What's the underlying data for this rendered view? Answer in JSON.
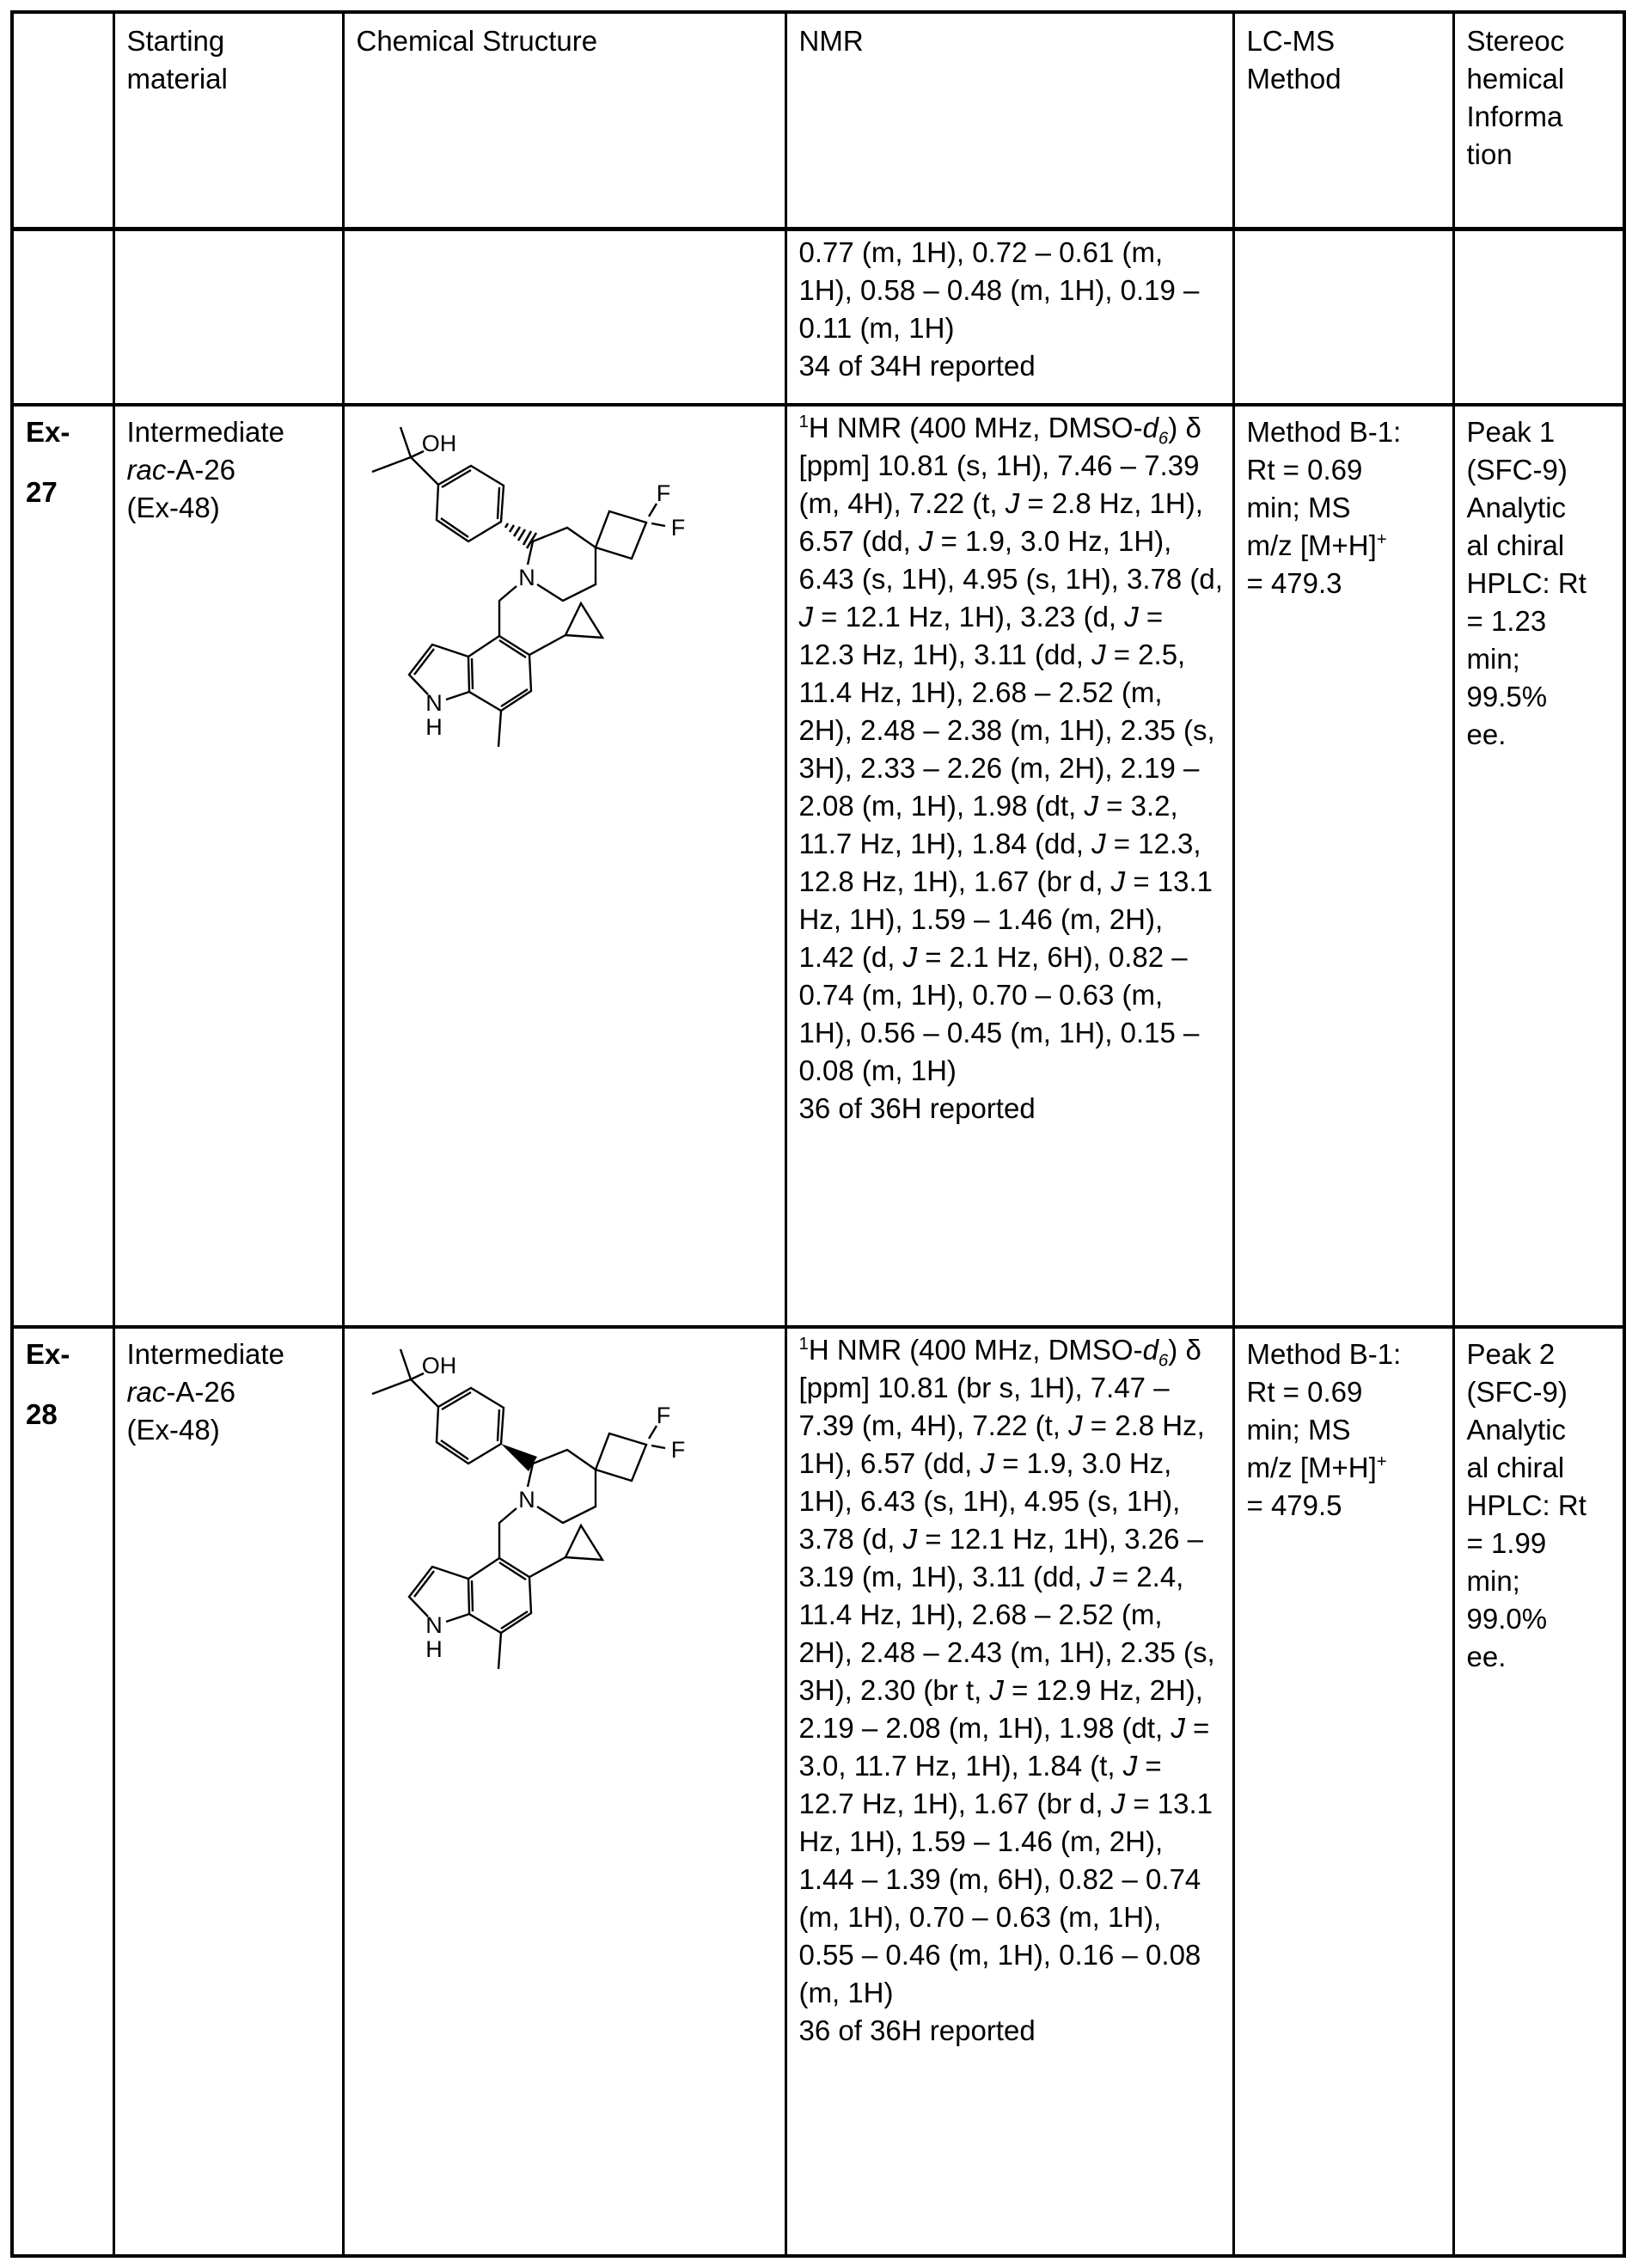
{
  "page": {
    "background": "#ffffff",
    "text_color": "#000000"
  },
  "table": {
    "headers": {
      "row_label": "",
      "starting_material": [
        "Starting",
        "material"
      ],
      "chemical_structure": [
        "Chemical Structure"
      ],
      "nmr": [
        "NMR"
      ],
      "lcms": [
        "LC-MS",
        "Method"
      ],
      "stereo": [
        "Stereoc",
        "hemical",
        "Informa",
        "tion"
      ]
    },
    "continuation_row": {
      "nmr": "0.77 (m, 1H), 0.72 – 0.61 (m, 1H), 0.58 – 0.48 (m, 1H), 0.19 – 0.11 (m, 1H)",
      "nmr_footer": "34 of 34H reported"
    },
    "rows": [
      {
        "id": "Ex-27",
        "id_lines": [
          "Ex-",
          "27"
        ],
        "starting_material": [
          "Intermediate",
          "<i>rac</i>-A-26",
          "(Ex-48)"
        ],
        "structure": {
          "atom_labels": [
            "OH",
            "F",
            "F",
            "N",
            "N",
            "H"
          ],
          "stereo_bond": "hashed-wedge"
        },
        "nmr": "<sup>1</sup>H NMR (400 MHz, DMSO-<i>d<sub>6</sub></i>) δ [ppm] 10.81 (s, 1H), 7.46 – 7.39 (m, 4H), 7.22 (t, <i>J</i> = 2.8 Hz, 1H), 6.57 (dd, <i>J</i> = 1.9, 3.0 Hz, 1H), 6.43 (s, 1H), 4.95 (s, 1H), 3.78 (d, <i>J</i> = 12.1 Hz, 1H), 3.23 (d, <i>J</i> = 12.3 Hz, 1H), 3.11 (dd, <i>J</i> = 2.5, 11.4 Hz, 1H), 2.68 – 2.52 (m, 2H), 2.48 – 2.38 (m, 1H), 2.35 (s, 3H), 2.33 – 2.26 (m, 2H), 2.19 – 2.08 (m, 1H), 1.98 (dt, <i>J</i> = 3.2, 11.7 Hz, 1H), 1.84 (dd, <i>J</i> = 12.3, 12.8 Hz, 1H), 1.67 (br d, <i>J</i> = 13.1 Hz, 1H), 1.59 – 1.46 (m, 2H), 1.42 (d, <i>J</i> = 2.1 Hz, 6H), 0.82 – 0.74 (m, 1H), 0.70 – 0.63 (m, 1H), 0.56 – 0.45 (m, 1H), 0.15 – 0.08 (m, 1H)",
        "nmr_footer": "36 of 36H reported",
        "lcms": [
          "Method B-1:",
          "Rt = 0.69",
          "min; MS",
          "m/z [M+H]<sup>+</sup>",
          "= 479.3"
        ],
        "stereo": [
          "Peak 1",
          "(SFC-9)",
          "Analytic",
          "al chiral",
          "HPLC: Rt",
          "= 1.23",
          "min;",
          "99.5%",
          "ee."
        ]
      },
      {
        "id": "Ex-28",
        "id_lines": [
          "Ex-",
          "28"
        ],
        "starting_material": [
          "Intermediate",
          "<i>rac</i>-A-26",
          "(Ex-48)"
        ],
        "structure": {
          "atom_labels": [
            "OH",
            "F",
            "F",
            "N",
            "N",
            "H"
          ],
          "stereo_bond": "solid-wedge"
        },
        "nmr": "<sup>1</sup>H NMR (400 MHz, DMSO-<i>d<sub>6</sub></i>) δ [ppm] 10.81 (br s, 1H), 7.47 – 7.39 (m, 4H), 7.22 (t, <i>J</i> = 2.8 Hz, 1H), 6.57 (dd, <i>J</i> = 1.9, 3.0 Hz, 1H), 6.43 (s, 1H), 4.95 (s, 1H), 3.78 (d, <i>J</i> = 12.1 Hz, 1H), 3.26 – 3.19 (m, 1H), 3.11 (dd, <i>J</i> = 2.4, 11.4 Hz, 1H), 2.68 – 2.52 (m, 2H), 2.48 – 2.43 (m, 1H), 2.35 (s, 3H), 2.30 (br t, <i>J</i> = 12.9 Hz, 2H), 2.19 – 2.08 (m, 1H), 1.98 (dt, <i>J</i> = 3.0, 11.7 Hz, 1H), 1.84 (t, <i>J</i> = 12.7 Hz, 1H), 1.67 (br d, <i>J</i> = 13.1 Hz, 1H), 1.59 – 1.46 (m, 2H), 1.44 – 1.39 (m, 6H), 0.82 – 0.74 (m, 1H), 0.70 – 0.63 (m, 1H), 0.55 – 0.46 (m, 1H), 0.16 – 0.08 (m, 1H)",
        "nmr_footer": "36 of 36H reported",
        "lcms": [
          "Method B-1:",
          "Rt = 0.69",
          "min; MS",
          "m/z [M+H]<sup>+</sup>",
          "= 479.5"
        ],
        "stereo": [
          "Peak 2",
          "(SFC-9)",
          "Analytic",
          "al chiral",
          "HPLC: Rt",
          "= 1.99",
          "min;",
          "99.0%",
          "ee."
        ]
      }
    ]
  }
}
